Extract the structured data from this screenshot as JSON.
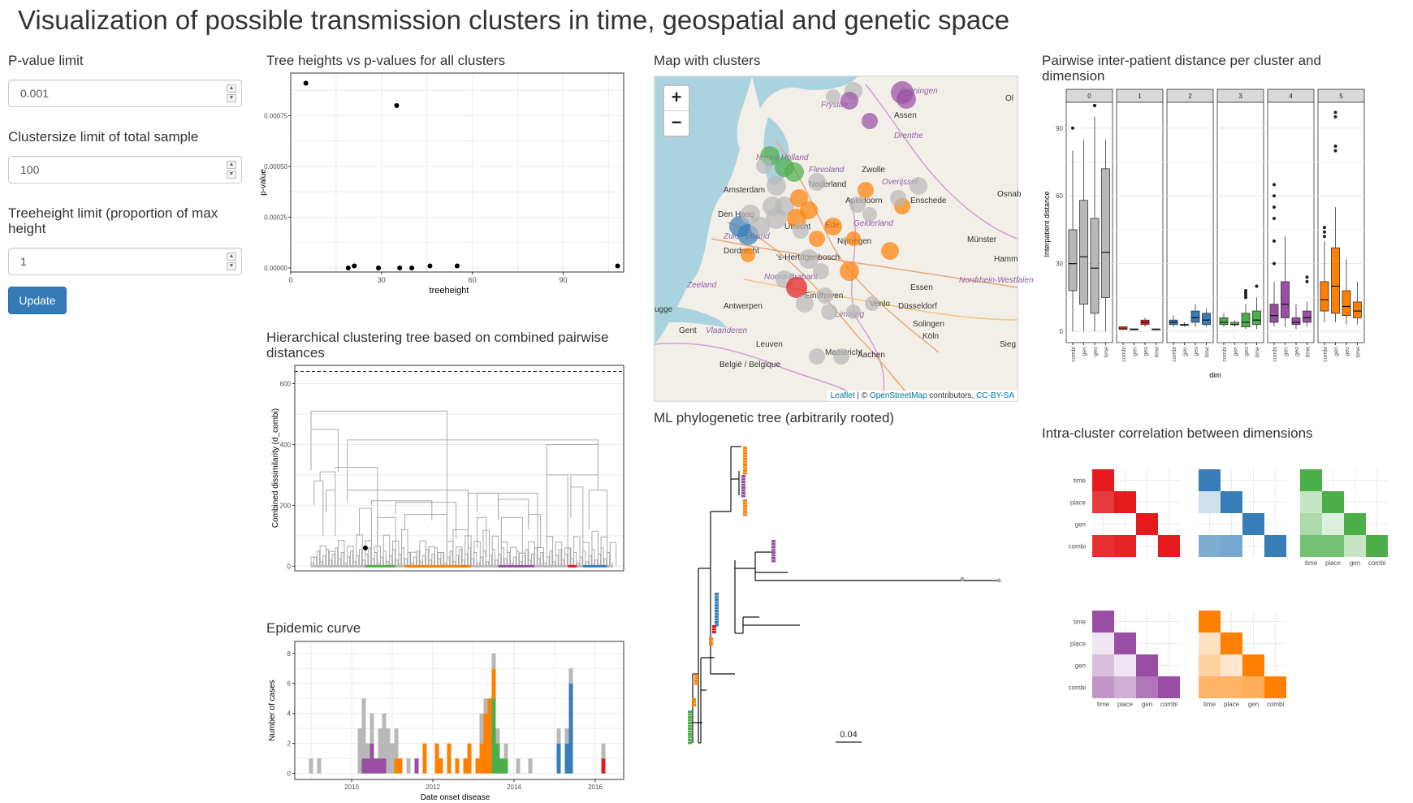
{
  "title": "Visualization of possible transmission clusters in time, geospatial and genetic space",
  "sidebar": {
    "pvalue": {
      "label": "P-value limit",
      "value": "0.001"
    },
    "clustersize": {
      "label": "Clustersize limit of total sample",
      "value": "100"
    },
    "treeheight": {
      "label": "Treeheight limit (proportion of max height",
      "value": "1"
    },
    "update_label": "Update"
  },
  "sections": {
    "tree_heights": "Tree heights vs p-values for all clusters",
    "hclust": "Hierarchical clustering tree based on combined pairwise distances",
    "epi": "Epidemic curve",
    "map": "Map with clusters",
    "ml_tree": "ML phylogenetic tree (arbitrarily rooted)",
    "pairwise": "Pairwise inter-patient distance per cluster and dimension",
    "correlation": "Intra-cluster correlation between dimensions"
  },
  "colors": {
    "grey": "#b8b8b8",
    "green": "#4daf4a",
    "orange": "#ff7f00",
    "purple": "#984ea3",
    "blue": "#377eb8",
    "red": "#e41a1c",
    "accent": "#337ab7"
  },
  "map": {
    "zoom_in": "+",
    "zoom_out": "−",
    "attribution": {
      "leaflet": "Leaflet",
      "sep": " | © ",
      "osm": "OpenStreetMap",
      "contrib": " contributors, ",
      "license": "CC-BY-SA"
    },
    "labels": {
      "groningen": "Groningen",
      "frysl": "Fryslân",
      "assen": "Assen",
      "drenthe": "Drenthe",
      "noord_holland": "Noord-Holland",
      "flevoland": "Flevoland",
      "zwolle": "Zwolle",
      "overijssel": "Overijssel",
      "amsterdam": "Amsterdam",
      "nederland": "Nederland",
      "apeldoorn": "Apeldoorn",
      "enschede": "Enschede",
      "osna": "Osnab",
      "den_haag": "Den Haag",
      "utrecht": "Utrecht",
      "ede": "Ede",
      "gelderland": "Gelderland",
      "zuid_holland": "Zuid-Holland",
      "dordrecht": "Dordrecht",
      "nijmegen": "Nijmegen",
      "munster": "Münster",
      "hertogenbosch": "'s-Hertogenbosch",
      "hamm": "Hamm",
      "zeeland": "Zeeland",
      "noord_brabant": "Noord-Brabant",
      "eindhoven": "Eindhoven",
      "essen": "Essen",
      "nrw": "Nordrhein-Westfalen",
      "antwerpen": "Antwerpen",
      "venlo": "Venlo",
      "dusseldorf": "Düsseldorf",
      "brugge": "ugge",
      "limburg": "Limburg",
      "gent": "Gent",
      "vlaanderen": "Vlaanderen",
      "solingen": "Solingen",
      "koln": "Köln",
      "leuven": "Leuven",
      "sieg": "Sieg",
      "maastricht": "Maastricht",
      "aachen": "Aachen",
      "belgie": "België / Belgique",
      "ol": "Ol"
    }
  },
  "chart_data": [
    {
      "type": "scatter",
      "title": "Tree heights vs p-values for all clusters",
      "xlabel": "treeheight",
      "ylabel": "p-value",
      "xlim": [
        0,
        110
      ],
      "ylim": [
        -2e-05,
        0.00096
      ],
      "xticks": [
        "0",
        "30",
        "60",
        "90"
      ],
      "yticks": [
        "0.00000",
        "0.00025",
        "0.00050",
        "0.00075"
      ],
      "points": [
        {
          "x": 5,
          "y": 0.00091
        },
        {
          "x": 35,
          "y": 0.0008
        },
        {
          "x": 19,
          "y": 0.0
        },
        {
          "x": 21,
          "y": 1e-05
        },
        {
          "x": 29,
          "y": 0.0
        },
        {
          "x": 36,
          "y": 0.0
        },
        {
          "x": 40,
          "y": 0.0
        },
        {
          "x": 46,
          "y": 1e-05
        },
        {
          "x": 55,
          "y": 1e-05
        },
        {
          "x": 108,
          "y": 1e-05
        }
      ],
      "grid": true
    },
    {
      "type": "dendrogram",
      "title": "Hierarchical clustering tree based on combined pairwise distances",
      "ylabel": "Combined dissimilarity (d_combi)",
      "ylim": [
        -15,
        660
      ],
      "yticks": [
        "0",
        "200",
        "400",
        "600"
      ],
      "cutoff": 640,
      "leaf_groups": [
        {
          "color": "grey",
          "start": 0.0,
          "end": 0.18
        },
        {
          "color": "green",
          "start": 0.18,
          "end": 0.28
        },
        {
          "color": "grey",
          "start": 0.28,
          "end": 0.31
        },
        {
          "color": "orange",
          "start": 0.31,
          "end": 0.53
        },
        {
          "color": "grey",
          "start": 0.53,
          "end": 0.62
        },
        {
          "color": "purple",
          "start": 0.62,
          "end": 0.74
        },
        {
          "color": "grey",
          "start": 0.74,
          "end": 0.85
        },
        {
          "color": "red",
          "start": 0.85,
          "end": 0.88
        },
        {
          "color": "grey",
          "start": 0.88,
          "end": 0.9
        },
        {
          "color": "blue",
          "start": 0.9,
          "end": 0.98
        },
        {
          "color": "grey",
          "start": 0.98,
          "end": 1.0
        }
      ]
    },
    {
      "type": "bar",
      "title": "Epidemic curve",
      "xlabel": "Date onset disease",
      "ylabel": "Number of cases",
      "xlim": [
        2008.6,
        2016.7
      ],
      "ylim": [
        -0.4,
        8.8
      ],
      "xticks": [
        "2010",
        "2012",
        "2014",
        "2016"
      ],
      "yticks": [
        "0",
        "2",
        "4",
        "6",
        "8"
      ],
      "bar_width": 0.1,
      "bars": [
        {
          "x": 2009.0,
          "grey": 1
        },
        {
          "x": 2009.2,
          "grey": 1
        },
        {
          "x": 2010.2,
          "grey": 3
        },
        {
          "x": 2010.3,
          "purple": 1,
          "grey": 4
        },
        {
          "x": 2010.4,
          "purple": 1,
          "grey": 1
        },
        {
          "x": 2010.5,
          "purple": 2,
          "grey": 2
        },
        {
          "x": 2010.6,
          "purple": 1
        },
        {
          "x": 2010.7,
          "purple": 1,
          "grey": 2
        },
        {
          "x": 2010.8,
          "purple": 1,
          "grey": 3
        },
        {
          "x": 2010.9,
          "grey": 3
        },
        {
          "x": 2011.0,
          "grey": 2
        },
        {
          "x": 2011.1,
          "orange": 1,
          "grey": 2
        },
        {
          "x": 2011.2,
          "orange": 1
        },
        {
          "x": 2011.4,
          "grey": 1
        },
        {
          "x": 2011.6,
          "purple": 1
        },
        {
          "x": 2011.8,
          "orange": 2
        },
        {
          "x": 2012.1,
          "orange": 2
        },
        {
          "x": 2012.2,
          "orange": 1
        },
        {
          "x": 2012.4,
          "orange": 2
        },
        {
          "x": 2012.6,
          "orange": 1
        },
        {
          "x": 2012.8,
          "orange": 1
        },
        {
          "x": 2012.9,
          "orange": 2
        },
        {
          "x": 2013.1,
          "orange": 1
        },
        {
          "x": 2013.2,
          "orange": 2,
          "grey": 2
        },
        {
          "x": 2013.3,
          "orange": 4,
          "grey": 1
        },
        {
          "x": 2013.4,
          "orange": 5
        },
        {
          "x": 2013.5,
          "green": 5,
          "grey": 1,
          "orange": 2
        },
        {
          "x": 2013.6,
          "green": 2,
          "grey": 1
        },
        {
          "x": 2013.7,
          "green": 1
        },
        {
          "x": 2013.8,
          "green": 1,
          "grey": 1
        },
        {
          "x": 2014.1,
          "grey": 1
        },
        {
          "x": 2014.4,
          "grey": 1
        },
        {
          "x": 2015.1,
          "blue": 2,
          "grey": 1
        },
        {
          "x": 2015.3,
          "blue": 2,
          "grey": 1
        },
        {
          "x": 2015.4,
          "blue": 6,
          "grey": 1
        },
        {
          "x": 2016.2,
          "red": 1,
          "grey": 1
        }
      ]
    },
    {
      "type": "boxplot",
      "title": "Pairwise inter-patient distance per cluster and dimension",
      "xlabel": "dim",
      "ylabel": "Interpatient distance",
      "ylim": [
        -5,
        100
      ],
      "yticks": [
        "0",
        "30",
        "60",
        "90"
      ],
      "categories": [
        "combi",
        "gen",
        "geo",
        "time"
      ],
      "panels": [
        {
          "name": "0",
          "color": "grey",
          "boxes": [
            [
              0,
              18,
              30,
              45,
              80,
              [
                90
              ]
            ],
            [
              0,
              12,
              33,
              58,
              85,
              []
            ],
            [
              0,
              8,
              28,
              50,
              95,
              [
                110,
                108,
                105
              ]
            ],
            [
              0,
              15,
              35,
              72,
              85,
              []
            ]
          ]
        },
        {
          "name": "1",
          "color": "red",
          "boxes": [
            [
              1,
              1,
              1,
              2,
              2,
              []
            ],
            [
              1,
              1,
              1,
              1,
              1,
              []
            ],
            [
              2,
              3,
              4,
              5,
              6,
              []
            ],
            [
              1,
              1,
              1,
              1,
              1,
              []
            ]
          ]
        },
        {
          "name": "2",
          "color": "blue",
          "boxes": [
            [
              2,
              3,
              4,
              5,
              7,
              []
            ],
            [
              2,
              3,
              3,
              3,
              4,
              []
            ],
            [
              2,
              4,
              6,
              9,
              12,
              []
            ],
            [
              2,
              3,
              5,
              8,
              10,
              []
            ]
          ]
        },
        {
          "name": "3",
          "color": "green",
          "boxes": [
            [
              2,
              3,
              4,
              6,
              8,
              []
            ],
            [
              2,
              3,
              3,
              4,
              5,
              []
            ],
            [
              1,
              2,
              4,
              8,
              12,
              [
                15,
                16,
                17,
                18
              ]
            ],
            [
              1,
              3,
              5,
              9,
              15,
              [
                20
              ]
            ]
          ]
        },
        {
          "name": "4",
          "color": "purple",
          "boxes": [
            [
              2,
              4,
              7,
              12,
              22,
              [
                30,
                40,
                50,
                55,
                60,
                65
              ]
            ],
            [
              2,
              6,
              12,
              22,
              42,
              []
            ],
            [
              1,
              3,
              4,
              6,
              12,
              []
            ],
            [
              2,
              4,
              6,
              9,
              13,
              [
                24,
                22
              ]
            ]
          ]
        },
        {
          "name": "5",
          "color": "orange",
          "boxes": [
            [
              4,
              9,
              14,
              22,
              40,
              [
                42,
                44,
                46
              ]
            ],
            [
              4,
              8,
              20,
              37,
              55,
              [
                80,
                82,
                95,
                97
              ]
            ],
            [
              3,
              7,
              11,
              18,
              32,
              []
            ],
            [
              3,
              6,
              9,
              13,
              22,
              []
            ]
          ]
        }
      ]
    },
    {
      "type": "heatmap",
      "title": "Intra-cluster correlation between dimensions",
      "rows": [
        "time",
        "place",
        "gen",
        "combi"
      ],
      "cols": [
        "time",
        "place",
        "gen",
        "combi"
      ],
      "panels": [
        {
          "color": "red",
          "values": [
            [
              1,
              null,
              null,
              null
            ],
            [
              0.85,
              1,
              null,
              null
            ],
            [
              0,
              0,
              1,
              null
            ],
            [
              0.9,
              0.95,
              0,
              1
            ]
          ]
        },
        {
          "color": "blue",
          "values": [
            [
              1,
              null,
              null,
              null
            ],
            [
              0.15,
              1,
              null,
              null
            ],
            [
              0,
              0,
              1,
              null
            ],
            [
              0.6,
              0.65,
              0,
              1
            ]
          ]
        },
        {
          "color": "green",
          "values": [
            [
              1,
              null,
              null,
              null
            ],
            [
              0.25,
              1,
              null,
              null
            ],
            [
              0.4,
              0.1,
              1,
              null
            ],
            [
              0.75,
              0.75,
              0.25,
              1
            ]
          ]
        },
        {
          "color": "purple",
          "values": [
            [
              1,
              null,
              null,
              null
            ],
            [
              0.05,
              1,
              null,
              null
            ],
            [
              0.3,
              0.05,
              1,
              null
            ],
            [
              0.55,
              0.4,
              0.75,
              1
            ]
          ]
        },
        {
          "color": "orange",
          "values": [
            [
              1,
              null,
              null,
              null
            ],
            [
              0.15,
              1,
              null,
              null
            ],
            [
              0.3,
              0.1,
              1,
              null
            ],
            [
              0.55,
              0.55,
              0.6,
              1
            ]
          ]
        }
      ]
    }
  ],
  "ml_scale_label": "0.04"
}
